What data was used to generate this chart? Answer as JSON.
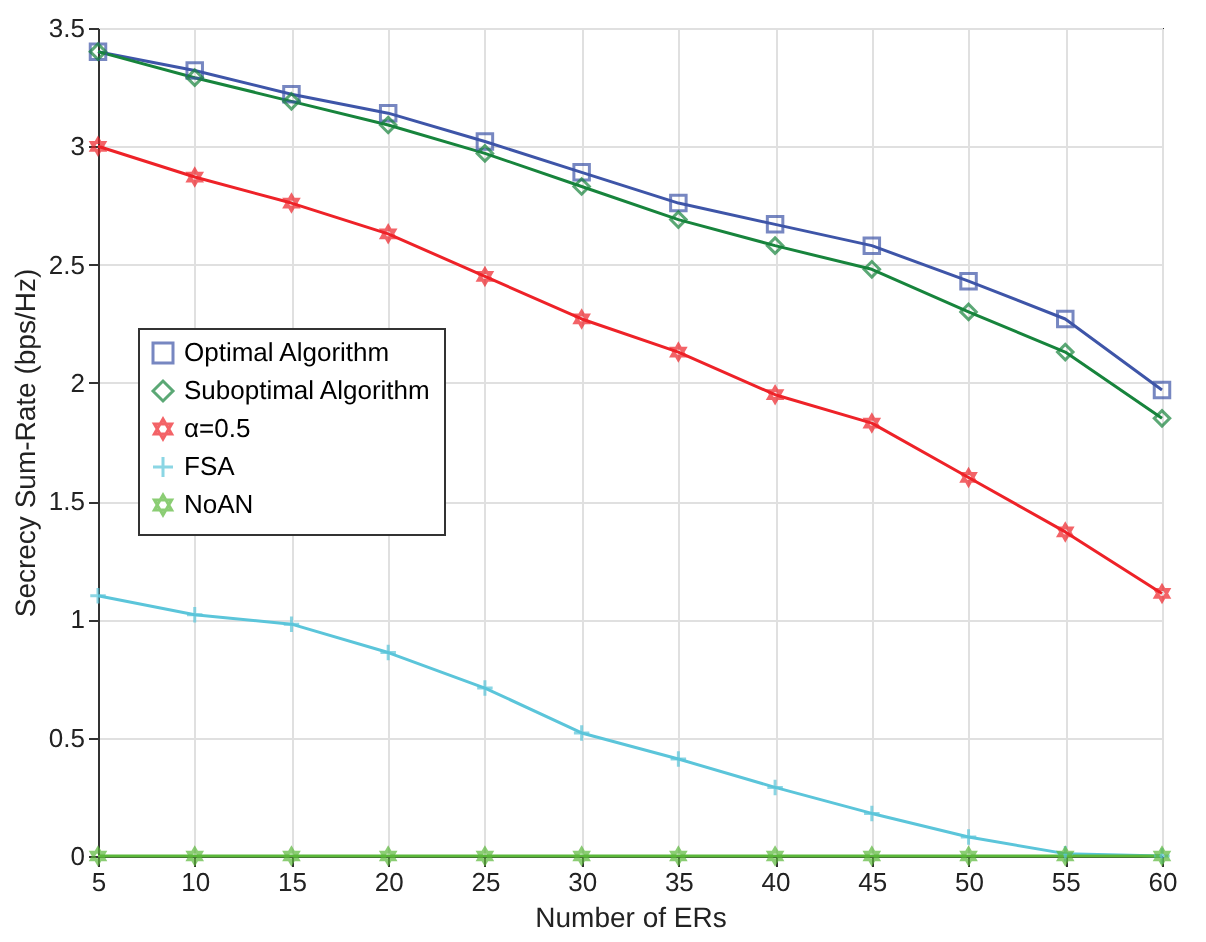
{
  "chart_data": {
    "type": "line",
    "xlabel": "Number of ERs",
    "ylabel": "Secrecy Sum-Rate (bps/Hz)",
    "x": [
      5,
      10,
      15,
      20,
      25,
      30,
      35,
      40,
      45,
      50,
      55,
      60
    ],
    "xlim": [
      5,
      60
    ],
    "xticks": [
      5,
      10,
      15,
      20,
      25,
      30,
      35,
      40,
      45,
      50,
      55,
      60
    ],
    "ylim": [
      0,
      3.5
    ],
    "yticks": [
      0,
      0.5,
      1,
      1.5,
      2,
      2.5,
      3,
      3.5
    ],
    "grid": true,
    "legend": "left",
    "line_style": "solid",
    "series": [
      {
        "name": "Optimal Algorithm",
        "color": "#3e55a8",
        "marker": "square",
        "values": [
          3.4,
          3.32,
          3.22,
          3.14,
          3.02,
          2.89,
          2.76,
          2.67,
          2.58,
          2.43,
          2.27,
          1.97
        ]
      },
      {
        "name": "Suboptimal Algorithm",
        "color": "#17843c",
        "marker": "diamond",
        "values": [
          3.4,
          3.29,
          3.19,
          3.09,
          2.97,
          2.83,
          2.69,
          2.58,
          2.48,
          2.3,
          2.13,
          1.85
        ]
      },
      {
        "name": "α=0.5",
        "color": "#ee2228",
        "marker": "star",
        "values": [
          3.0,
          2.87,
          2.76,
          2.63,
          2.45,
          2.27,
          2.13,
          1.95,
          1.83,
          1.6,
          1.37,
          1.11
        ]
      },
      {
        "name": "FSA",
        "color": "#5bc5da",
        "marker": "cross",
        "values": [
          1.1,
          1.02,
          0.98,
          0.86,
          0.71,
          0.52,
          0.41,
          0.29,
          0.18,
          0.08,
          0.01,
          0.0
        ]
      },
      {
        "name": "NoAN",
        "color": "#5bb83a",
        "marker": "star",
        "values": [
          0,
          0,
          0,
          0,
          0,
          0,
          0,
          0,
          0,
          0,
          0,
          0
        ]
      }
    ]
  }
}
